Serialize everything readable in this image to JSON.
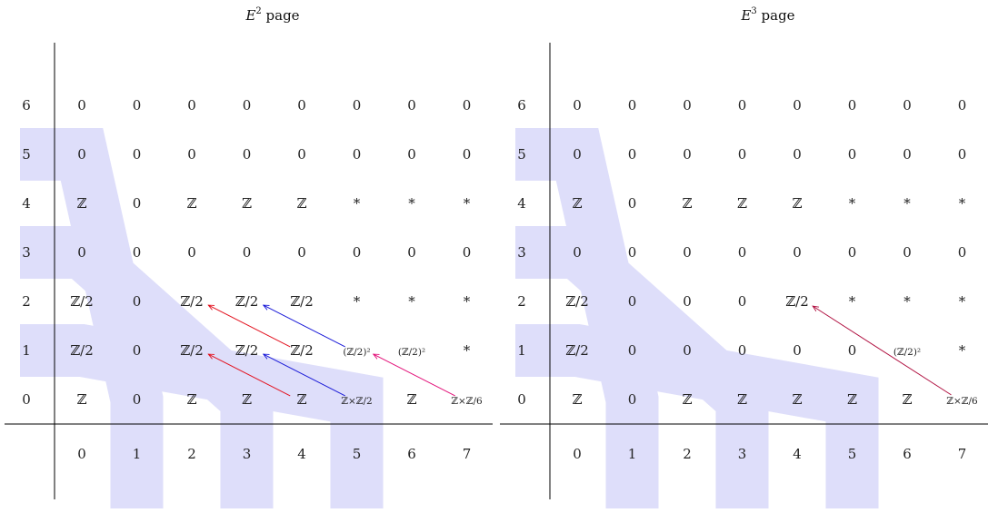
{
  "colors": {
    "band": "#dedefa",
    "axis": "#000000",
    "arrow_red": "#e3121f",
    "arrow_blue": "#1a1ad8",
    "arrow_magenta": "#e3127a",
    "arrow_crimson": "#b01040"
  },
  "pages": [
    {
      "title_main": "E",
      "title_sup": "2",
      "title_rest": " page",
      "row_labels": [
        "0",
        "1",
        "2",
        "3",
        "4",
        "5",
        "6"
      ],
      "col_labels": [
        "0",
        "1",
        "2",
        "3",
        "4",
        "5",
        "6",
        "7"
      ],
      "entries": [
        [
          "ℤ",
          "0",
          "ℤ",
          "ℤ",
          "ℤ",
          "ℤ×ℤ/2",
          "ℤ",
          "ℤ×ℤ/6"
        ],
        [
          "ℤ/2",
          "0",
          "ℤ/2",
          "ℤ/2",
          "ℤ/2",
          "(ℤ/2)²",
          "(ℤ/2)²",
          "*"
        ],
        [
          "ℤ/2",
          "0",
          "ℤ/2",
          "ℤ/2",
          "ℤ/2",
          "*",
          "*",
          "*"
        ],
        [
          "0",
          "0",
          "0",
          "0",
          "0",
          "0",
          "0",
          "0"
        ],
        [
          "ℤ",
          "0",
          "ℤ",
          "ℤ",
          "ℤ",
          "*",
          "*",
          "*"
        ],
        [
          "0",
          "0",
          "0",
          "0",
          "0",
          "0",
          "0",
          "0"
        ],
        [
          "0",
          "0",
          "0",
          "0",
          "0",
          "0",
          "0",
          "0"
        ]
      ],
      "arrows": [
        {
          "from": [
            4,
            0
          ],
          "to": [
            2,
            1
          ],
          "color": "arrow_red"
        },
        {
          "from": [
            5,
            0
          ],
          "to": [
            3,
            1
          ],
          "color": "arrow_blue"
        },
        {
          "from": [
            5,
            1
          ],
          "to": [
            3,
            2
          ],
          "color": "arrow_blue"
        },
        {
          "from": [
            4,
            1
          ],
          "to": [
            2,
            2
          ],
          "color": "arrow_red"
        },
        {
          "from": [
            7,
            0
          ],
          "to": [
            5,
            1
          ],
          "color": "arrow_magenta"
        }
      ]
    },
    {
      "title_main": "E",
      "title_sup": "3",
      "title_rest": " page",
      "row_labels": [
        "0",
        "1",
        "2",
        "3",
        "4",
        "5",
        "6"
      ],
      "col_labels": [
        "0",
        "1",
        "2",
        "3",
        "4",
        "5",
        "6",
        "7"
      ],
      "entries": [
        [
          "ℤ",
          "0",
          "ℤ",
          "ℤ",
          "ℤ",
          "ℤ",
          "ℤ",
          "ℤ×ℤ/6"
        ],
        [
          "ℤ/2",
          "0",
          "0",
          "0",
          "0",
          "0",
          "(ℤ/2)²",
          "*"
        ],
        [
          "ℤ/2",
          "0",
          "0",
          "0",
          "ℤ/2",
          "*",
          "*",
          "*"
        ],
        [
          "0",
          "0",
          "0",
          "0",
          "0",
          "0",
          "0",
          "0"
        ],
        [
          "ℤ",
          "0",
          "ℤ",
          "ℤ",
          "ℤ",
          "*",
          "*",
          "*"
        ],
        [
          "0",
          "0",
          "0",
          "0",
          "0",
          "0",
          "0",
          "0"
        ],
        [
          "0",
          "0",
          "0",
          "0",
          "0",
          "0",
          "0",
          "0"
        ]
      ],
      "arrows": [
        {
          "from": [
            7,
            0
          ],
          "to": [
            4,
            2
          ],
          "color": "arrow_crimson"
        }
      ]
    }
  ]
}
